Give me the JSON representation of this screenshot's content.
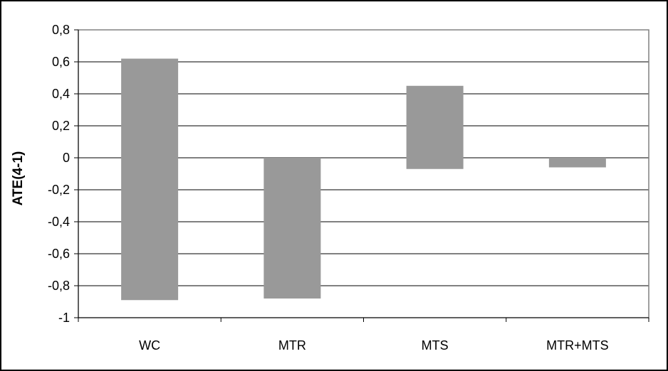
{
  "chart_data": {
    "type": "floating-bar",
    "title": "",
    "xlabel": "",
    "ylabel": "ATE(4-1)",
    "ylim": [
      -1,
      0.8
    ],
    "ytick_step": 0.2,
    "ytick_labels": [
      "0,8",
      "0,6",
      "0,4",
      "0,2",
      "0",
      "-0,2",
      "-0,4",
      "-0,6",
      "-0,8",
      "-1"
    ],
    "categories": [
      "WC",
      "MTR",
      "MTS",
      "MTR+MTS"
    ],
    "ranges": [
      {
        "low": -0.89,
        "high": 0.62
      },
      {
        "low": -0.88,
        "high": 0.0
      },
      {
        "low": -0.07,
        "high": 0.45
      },
      {
        "low": -0.06,
        "high": 0.0
      }
    ],
    "grid": true,
    "legend": "none",
    "colors": {
      "bar": "#999999",
      "plot_background": "#ffffff",
      "plot_border": "#808080",
      "gridline": "#000000",
      "frame": "#000000"
    }
  }
}
